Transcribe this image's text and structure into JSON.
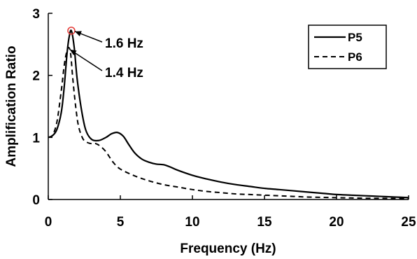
{
  "chart_data": {
    "type": "line",
    "xlabel": "Frequency (Hz)",
    "ylabel": "Amplification Ratio",
    "xlim": [
      0,
      25
    ],
    "ylim": [
      0,
      3
    ],
    "xticks": [
      0,
      5,
      10,
      15,
      20,
      25
    ],
    "yticks": [
      0,
      1,
      2,
      3
    ],
    "grid": false,
    "legend_position": "top-right",
    "series": [
      {
        "name": "P5",
        "style": "solid",
        "color": "#000000",
        "x": [
          0,
          0.3,
          0.6,
          0.9,
          1.1,
          1.3,
          1.45,
          1.6,
          1.8,
          2.0,
          2.3,
          2.6,
          3.0,
          3.5,
          4.0,
          4.4,
          4.8,
          5.2,
          5.6,
          6.0,
          6.5,
          7.0,
          7.5,
          8.0,
          8.5,
          9.0,
          10,
          11,
          12,
          13,
          14,
          15,
          16,
          17,
          18,
          19,
          20,
          21,
          22,
          23,
          24,
          25
        ],
        "y": [
          1.0,
          1.03,
          1.13,
          1.4,
          1.8,
          2.35,
          2.62,
          2.72,
          2.45,
          1.95,
          1.45,
          1.12,
          0.97,
          0.95,
          1.0,
          1.06,
          1.08,
          1.02,
          0.88,
          0.75,
          0.65,
          0.6,
          0.57,
          0.56,
          0.52,
          0.47,
          0.39,
          0.33,
          0.28,
          0.24,
          0.21,
          0.18,
          0.16,
          0.14,
          0.12,
          0.1,
          0.08,
          0.07,
          0.06,
          0.05,
          0.04,
          0.03
        ]
      },
      {
        "name": "P6",
        "style": "dashed",
        "color": "#000000",
        "x": [
          0,
          0.3,
          0.6,
          0.9,
          1.1,
          1.25,
          1.4,
          1.55,
          1.7,
          1.9,
          2.1,
          2.4,
          2.7,
          3.0,
          3.3,
          3.6,
          4.0,
          4.5,
          5.0,
          6.0,
          7.0,
          8.0,
          9.0,
          10,
          11,
          12,
          13,
          14,
          15,
          16,
          17,
          18,
          19,
          20,
          21,
          22,
          23,
          24,
          25
        ],
        "y": [
          1.0,
          1.04,
          1.25,
          1.75,
          2.15,
          2.35,
          2.45,
          2.35,
          1.95,
          1.5,
          1.18,
          0.98,
          0.92,
          0.9,
          0.9,
          0.86,
          0.77,
          0.6,
          0.49,
          0.38,
          0.3,
          0.24,
          0.2,
          0.16,
          0.13,
          0.11,
          0.09,
          0.08,
          0.07,
          0.06,
          0.05,
          0.04,
          0.035,
          0.03,
          0.025,
          0.02,
          0.018,
          0.016,
          0.015
        ]
      }
    ],
    "annotations": [
      {
        "text": "1.6 Hz",
        "x": 1.6,
        "y": 2.72,
        "marker": "circle",
        "marker_color": "#e53935"
      },
      {
        "text": "1.4 Hz",
        "x": 1.4,
        "y": 2.45
      }
    ]
  }
}
